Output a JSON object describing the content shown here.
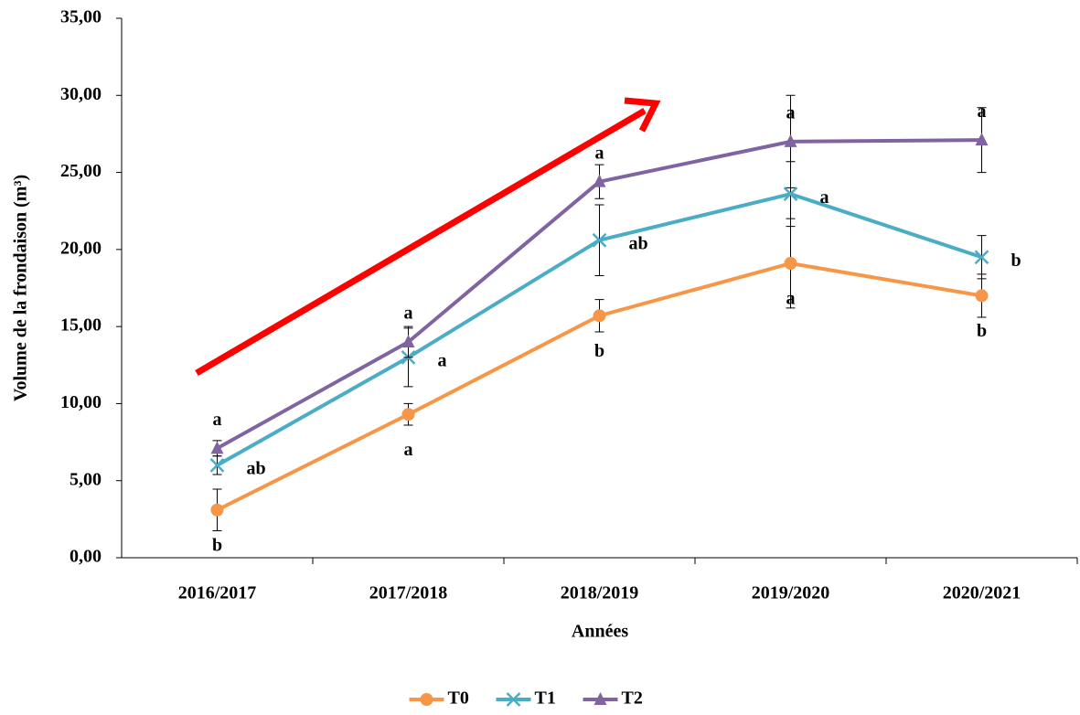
{
  "chart_data": {
    "type": "line",
    "x_label": "Années",
    "y_label": "Volume de la frondaison (m³)",
    "categories": [
      "2016/2017",
      "2017/2018",
      "2018/2019",
      "2019/2020",
      "2020/2021"
    ],
    "series": [
      {
        "name": "T0",
        "color": "#f79646",
        "marker": "circle",
        "values": [
          3.1,
          9.3,
          15.7,
          19.1,
          17.0
        ],
        "errors": [
          1.35,
          0.7,
          1.05,
          2.9,
          1.4
        ],
        "letters": [
          "b",
          "a",
          "b",
          "a",
          "b"
        ]
      },
      {
        "name": "T1",
        "color": "#4bacc6",
        "marker": "x",
        "values": [
          6.0,
          13.0,
          20.6,
          23.6,
          19.5
        ],
        "errors": [
          0.6,
          1.9,
          2.3,
          2.1,
          1.4
        ],
        "letters": [
          "ab",
          "a",
          "ab",
          "a",
          "b"
        ]
      },
      {
        "name": "T2",
        "color": "#8064a2",
        "marker": "triangle",
        "values": [
          7.1,
          14.0,
          24.4,
          27.0,
          27.1
        ],
        "errors": [
          0.5,
          1.0,
          1.1,
          3.0,
          2.1
        ],
        "letters": [
          "a",
          "a",
          "a",
          "a",
          "a"
        ]
      }
    ],
    "ylim": [
      0,
      35
    ],
    "yticks": [
      {
        "value": 0,
        "label": "0,00"
      },
      {
        "value": 5,
        "label": "5,00"
      },
      {
        "value": 10,
        "label": "10,00"
      },
      {
        "value": 15,
        "label": "15,00"
      },
      {
        "value": 20,
        "label": "20,00"
      },
      {
        "value": 25,
        "label": "25,00"
      },
      {
        "value": 30,
        "label": "30,00"
      },
      {
        "value": 35,
        "label": "35,00"
      }
    ],
    "legend": "bottom"
  }
}
